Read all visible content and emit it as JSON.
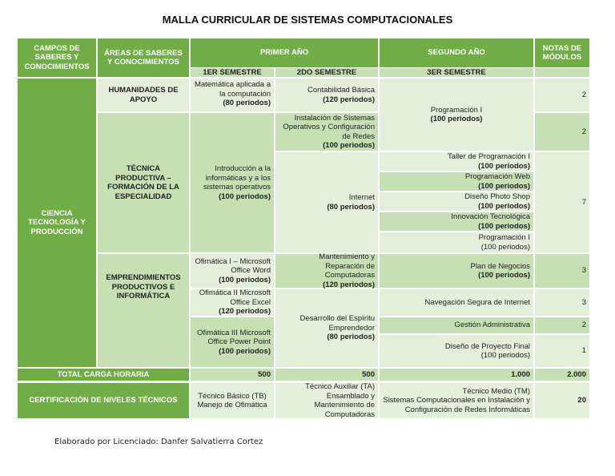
{
  "title": "MALLA CURRICULAR DE SISTEMAS COMPUTACIONALES",
  "header": {
    "campos": "CAMPOS DE SABERES Y CONOCIMIENTOS",
    "areas": "ÁREAS DE SABERES Y CONOCIMIENTOS",
    "primer": "PRIMER AÑO",
    "segundo": "SEGUNDO AÑO",
    "notas": "NOTAS DE MÓDULOS",
    "s1": "1ER SEMESTRE",
    "s2": "2DO SEMESTRE",
    "s3": "3ER SEMESTRE"
  },
  "campo": "CIENCIA TECNOLOGÍA Y PRODUCCIÓN",
  "areas": {
    "humanidades": "HUMANIDADES DE APOYO",
    "tecnica": "TÉCNICA PRODUCTIVA – FORMACIÓN DE LA ESPECIALIDAD",
    "emprend": "EMPRENDIMIENTOS PRODUCTIVOS E INFORMÁTICA"
  },
  "modules": {
    "mat": {
      "name": "Matemática aplicada a la computación",
      "hours": "(80 periodos)"
    },
    "cont": {
      "name": "Contabilidad Básica",
      "hours": "(120 periodos)"
    },
    "prog1": {
      "name": "Programación I",
      "hours": "(100 periodos)"
    },
    "inst": {
      "name": "Instalación de Sistemas Operativos y Configuración de Redes",
      "hours": "(100 periodos)"
    },
    "intro": {
      "name": "Introducción a la informáticas y a los sistemas operativos",
      "hours": "(100 periodos)"
    },
    "internet": {
      "name": "Internet",
      "hours": "(80 periodos)"
    },
    "taller": {
      "name": "Taller de Programación I",
      "hours": "(100 periodos)"
    },
    "web": {
      "name": "Programación Web",
      "hours": "(100 periodos)"
    },
    "photo": {
      "name": "Diseño Photo Shop",
      "hours": "(100 periodos)"
    },
    "innov": {
      "name": "Innovación Tecnológica",
      "hours": "(100 periodos)"
    },
    "prog1b": {
      "name": "Programación I",
      "hours": "(100 periodos)"
    },
    "ofi1": {
      "name": "Ofimática I – Microsoft Office Word",
      "hours": "(100 periodos)"
    },
    "mant": {
      "name": "Mantenimiento y Reparación de Computadoras",
      "hours": "(120 periodos)"
    },
    "plan": {
      "name": "Plan de Negocios",
      "hours": "(100 periodos)"
    },
    "ofi2": {
      "name": "Ofimática II Microsoft Office Excel",
      "hours": "(120 periodos)"
    },
    "nav": {
      "name": "Navegación Segura de Internet"
    },
    "ofi3": {
      "name": "Ofimática III Microsoft Office Power Point",
      "hours": "(100 periodos)"
    },
    "desa": {
      "name": "Desarrollo del Espíritu Emprendedor",
      "hours": "(80 periodos)"
    },
    "gest": {
      "name": "Gestión Administrativa"
    },
    "final": {
      "name": "Diseño de Proyecto Final",
      "hours": "(100 periodos)"
    }
  },
  "notes": [
    "2",
    "2",
    "7",
    "3",
    "3",
    "2",
    "1"
  ],
  "total": {
    "label": "TOTAL CARGA HORARIA",
    "s1": "500",
    "s2": "500",
    "s3": "1.000",
    "all": "2.000"
  },
  "cert": {
    "label": "CERTIFICACIÓN DE NIVELES TÉCNICOS",
    "tb": "Técnico Básico (TB) Manejo de Ofimática",
    "ta": "Técnico Auxiliar (TA) Ensamblado y Mantenimiento de Computadoras",
    "tm1": "Técnico Medio (TM)",
    "tm2": "Sistemas Computacionales en Instalación y Configuración de Redes Informáticas",
    "notes": "20"
  },
  "footer": "Elaborado por Licenciado: Danfer Salvatierra Cortez"
}
